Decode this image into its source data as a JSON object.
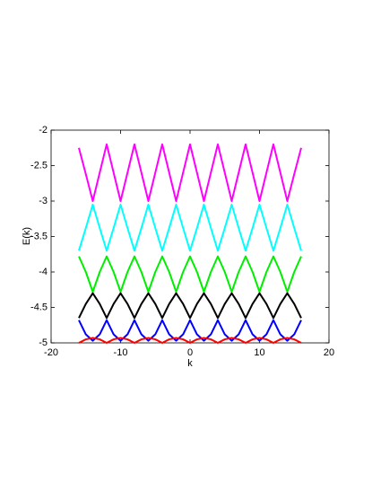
{
  "chart_data": {
    "type": "line",
    "x_label": "k",
    "y_label": "E(k)",
    "x": [
      -16,
      -15,
      -14,
      -13,
      -12,
      -11,
      -10,
      -9,
      -8,
      -7,
      -6,
      -5,
      -4,
      -3,
      -2,
      -1,
      0,
      1,
      2,
      3,
      4,
      5,
      6,
      7,
      8,
      9,
      10,
      11,
      12,
      13,
      14,
      15,
      16
    ],
    "series": [
      {
        "color": "#ff00ff",
        "values": [
          -2.25,
          -2.62,
          -3.0,
          -2.6,
          -2.2,
          -2.6,
          -3.0,
          -2.6,
          -2.2,
          -2.6,
          -3.0,
          -2.6,
          -2.2,
          -2.6,
          -3.0,
          -2.6,
          -2.2,
          -2.6,
          -3.0,
          -2.6,
          -2.2,
          -2.6,
          -3.0,
          -2.6,
          -2.2,
          -2.6,
          -3.0,
          -2.6,
          -2.2,
          -2.6,
          -3.0,
          -2.62,
          -2.25
        ]
      },
      {
        "color": "#00ffff",
        "values": [
          -3.7,
          -3.38,
          -3.05,
          -3.38,
          -3.7,
          -3.38,
          -3.05,
          -3.38,
          -3.7,
          -3.38,
          -3.05,
          -3.38,
          -3.7,
          -3.38,
          -3.05,
          -3.38,
          -3.7,
          -3.38,
          -3.05,
          -3.38,
          -3.7,
          -3.38,
          -3.05,
          -3.38,
          -3.7,
          -3.38,
          -3.05,
          -3.38,
          -3.7,
          -3.38,
          -3.05,
          -3.38,
          -3.7
        ]
      },
      {
        "color": "#00ee00",
        "values": [
          -3.78,
          -4.0,
          -4.28,
          -4.0,
          -3.78,
          -4.0,
          -4.28,
          -4.0,
          -3.78,
          -4.0,
          -4.28,
          -4.0,
          -3.78,
          -4.0,
          -4.28,
          -4.0,
          -3.78,
          -4.0,
          -4.28,
          -4.0,
          -3.78,
          -4.0,
          -4.28,
          -4.0,
          -3.78,
          -4.0,
          -4.28,
          -4.0,
          -3.78,
          -4.0,
          -4.28,
          -4.0,
          -3.78
        ]
      },
      {
        "color": "#000000",
        "values": [
          -4.65,
          -4.45,
          -4.3,
          -4.45,
          -4.65,
          -4.45,
          -4.3,
          -4.45,
          -4.65,
          -4.45,
          -4.3,
          -4.45,
          -4.65,
          -4.45,
          -4.3,
          -4.45,
          -4.65,
          -4.45,
          -4.3,
          -4.45,
          -4.65,
          -4.45,
          -4.3,
          -4.45,
          -4.65,
          -4.45,
          -4.3,
          -4.45,
          -4.65,
          -4.45,
          -4.3,
          -4.45,
          -4.65
        ]
      },
      {
        "color": "#0000ff",
        "values": [
          -4.68,
          -4.88,
          -4.97,
          -4.88,
          -4.68,
          -4.88,
          -4.97,
          -4.88,
          -4.68,
          -4.88,
          -4.97,
          -4.88,
          -4.68,
          -4.88,
          -4.97,
          -4.88,
          -4.68,
          -4.88,
          -4.97,
          -4.88,
          -4.68,
          -4.88,
          -4.97,
          -4.88,
          -4.68,
          -4.88,
          -4.97,
          -4.88,
          -4.68,
          -4.88,
          -4.97,
          -4.88,
          -4.68
        ]
      },
      {
        "color": "#ff0000",
        "values": [
          -5.0,
          -4.95,
          -4.93,
          -4.95,
          -5.0,
          -4.95,
          -4.93,
          -4.95,
          -5.0,
          -4.95,
          -4.93,
          -4.95,
          -5.0,
          -4.95,
          -4.93,
          -4.95,
          -5.0,
          -4.95,
          -4.93,
          -4.95,
          -5.0,
          -4.95,
          -4.93,
          -4.95,
          -5.0,
          -4.95,
          -4.93,
          -4.95,
          -5.0,
          -4.95,
          -4.93,
          -4.95,
          -5.0
        ]
      }
    ],
    "xlim": [
      -20,
      20
    ],
    "ylim": [
      -5,
      -2
    ],
    "xticks": [
      -20,
      -10,
      0,
      10,
      20
    ],
    "yticks": [
      -5,
      -4.5,
      -4,
      -3.5,
      -3,
      -2.5,
      -2
    ],
    "grid": false
  }
}
